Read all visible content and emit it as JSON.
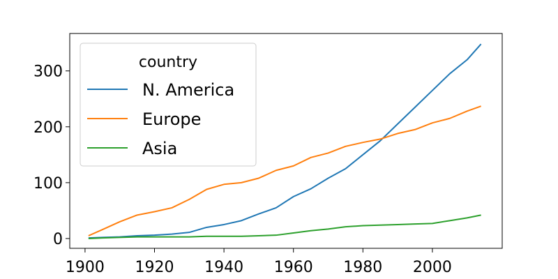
{
  "chart_data": {
    "type": "line",
    "title": "",
    "xlabel": "",
    "ylabel": "",
    "xlim": [
      1895.6,
      2020.1
    ],
    "ylim": [
      -17.5,
      367
    ],
    "xticks": [
      1900,
      1920,
      1940,
      1960,
      1980,
      2000
    ],
    "yticks": [
      0,
      100,
      200,
      300
    ],
    "grid": false,
    "legend": {
      "title": "country",
      "position": "top-left"
    },
    "x": [
      1901,
      1905,
      1910,
      1915,
      1920,
      1925,
      1930,
      1935,
      1940,
      1945,
      1950,
      1955,
      1960,
      1965,
      1970,
      1975,
      1980,
      1985,
      1990,
      1995,
      2000,
      2005,
      2010,
      2014
    ],
    "series": [
      {
        "name": "N. America",
        "color": "#1f77b4",
        "values": [
          1,
          2,
          3,
          5,
          6,
          8,
          11,
          20,
          25,
          32,
          44,
          55,
          75,
          89,
          108,
          125,
          150,
          175,
          205,
          235,
          265,
          295,
          320,
          348
        ]
      },
      {
        "name": "Europe",
        "color": "#ff7f0e",
        "values": [
          5,
          16,
          30,
          42,
          48,
          55,
          70,
          88,
          97,
          100,
          108,
          122,
          130,
          145,
          153,
          165,
          172,
          178,
          188,
          195,
          207,
          215,
          228,
          237
        ]
      },
      {
        "name": "Asia",
        "color": "#2ca02c",
        "values": [
          0,
          1,
          2,
          3,
          3,
          3,
          3,
          4,
          4,
          4,
          5,
          6,
          10,
          14,
          17,
          21,
          23,
          24,
          25,
          26,
          27,
          32,
          37,
          42
        ]
      }
    ]
  }
}
